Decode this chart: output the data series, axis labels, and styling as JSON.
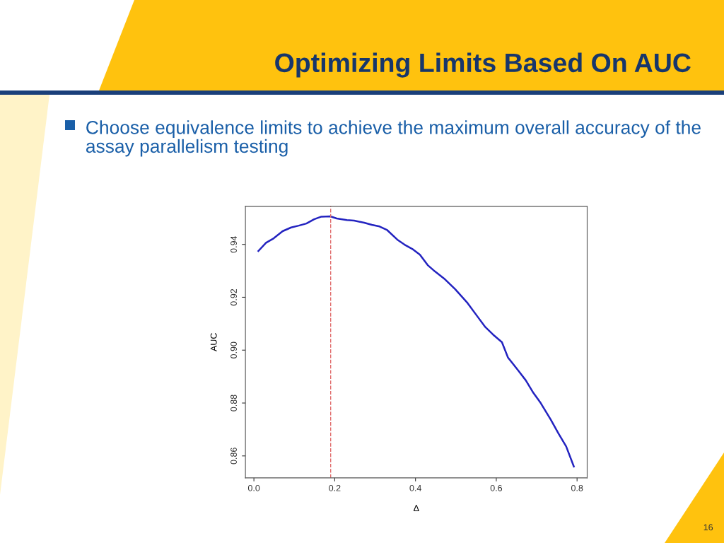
{
  "chart_data": {
    "type": "line",
    "title": "Optimizing Limits Based On AUC",
    "subtitle": "Choose equivalence limits to achieve the maximum overall accuracy of the assay parallelism testing",
    "xlabel": "Δ",
    "ylabel": "AUC",
    "annotations": [
      "16"
    ],
    "series": [
      {
        "color": "#2323c0",
        "x": [
          0.011,
          0.03,
          0.049,
          0.071,
          0.092,
          0.111,
          0.13,
          0.149,
          0.167,
          0.189,
          0.205,
          0.23,
          0.248,
          0.273,
          0.292,
          0.311,
          0.33,
          0.355,
          0.373,
          0.392,
          0.411,
          0.43,
          0.448,
          0.473,
          0.498,
          0.529,
          0.554,
          0.573,
          0.592,
          0.614,
          0.629,
          0.654,
          0.673,
          0.692,
          0.71,
          0.735,
          0.754,
          0.773,
          0.792
        ],
        "values": [
          0.9375,
          0.9406,
          0.9423,
          0.945,
          0.9464,
          0.9471,
          0.9479,
          0.9495,
          0.9505,
          0.9506,
          0.9498,
          0.9492,
          0.949,
          0.9482,
          0.9474,
          0.9468,
          0.9454,
          0.9418,
          0.9399,
          0.9383,
          0.9361,
          0.9322,
          0.9298,
          0.9268,
          0.9231,
          0.9178,
          0.9126,
          0.9087,
          0.9059,
          0.903,
          0.8972,
          0.8924,
          0.8886,
          0.8838,
          0.88,
          0.8737,
          0.8685,
          0.8636,
          0.856
        ]
      }
    ],
    "ref_lines": [
      {
        "axis": "x",
        "value": 0.19,
        "color": "#e06b6b",
        "line_style": "dashed"
      }
    ],
    "xlim": [
      -0.021,
      0.825
    ],
    "ylim": [
      0.8517,
      0.9544
    ],
    "xticks": [
      {
        "value": 0,
        "label": "0.0"
      },
      0.2,
      0.4,
      0.6,
      0.8
    ],
    "yticks": [
      0.86,
      0.88,
      {
        "value": 0.9,
        "label": "0.90"
      },
      0.92,
      0.94
    ],
    "grid": false,
    "legend": false,
    "marker": "none",
    "line_style": "solid"
  }
}
